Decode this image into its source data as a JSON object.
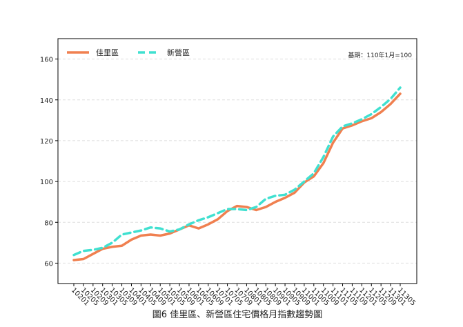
{
  "chart_data": {
    "type": "line",
    "title": "圖6 佳里區、新營區住宅價格月指數趨勢圖",
    "annotation": "基期：110年1月=100",
    "categories": [
      "10201",
      "10205",
      "10209",
      "10301",
      "10305",
      "10309",
      "10401",
      "10405",
      "10409",
      "10501",
      "10505",
      "10509",
      "10601",
      "10605",
      "10609",
      "10701",
      "10705",
      "10709",
      "10801",
      "10805",
      "10809",
      "10901",
      "10905",
      "10909",
      "11001",
      "11005",
      "11009",
      "11101",
      "11105",
      "11109",
      "11201",
      "11205",
      "11209",
      "11301",
      "11305"
    ],
    "series": [
      {
        "name": "佳里區",
        "color": "#f08050",
        "dash": false,
        "values": [
          61.5,
          62,
          64.5,
          67,
          68,
          68.5,
          71.5,
          73.5,
          74,
          73.5,
          74.5,
          76.5,
          78.5,
          77,
          79,
          81.5,
          85.5,
          88,
          87.5,
          86,
          87.5,
          90,
          92,
          94.5,
          99.5,
          102.5,
          109,
          119,
          126,
          127.5,
          129.5,
          131,
          134,
          138,
          143
        ]
      },
      {
        "name": "新營區",
        "color": "#40e0d0",
        "dash": true,
        "values": [
          64,
          66,
          66.5,
          67.5,
          70,
          74,
          75,
          76,
          77.5,
          77,
          75.5,
          76.5,
          79,
          81,
          82.5,
          84.5,
          86.5,
          86.5,
          86,
          87.5,
          91.5,
          93,
          93.5,
          96,
          100,
          104,
          112,
          122,
          127,
          128.5,
          130.5,
          133,
          136.5,
          140.5,
          146
        ]
      }
    ],
    "ylim": [
      50,
      170
    ],
    "yticks": [
      60,
      80,
      100,
      120,
      140,
      160
    ],
    "grid": true,
    "legend": "upper left"
  }
}
